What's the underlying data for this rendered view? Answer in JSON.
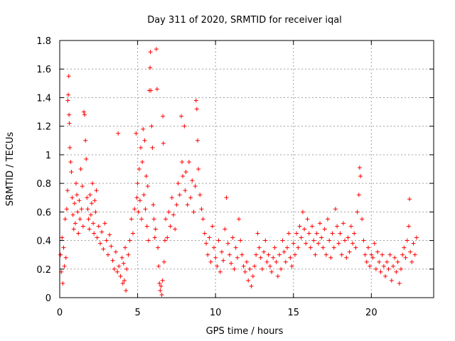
{
  "chart_data": {
    "type": "scatter",
    "title": "Day 311 of 2020, SRMTID for receiver iqal",
    "xlabel": "GPS time / hours",
    "ylabel": "SRMTID / TECUs",
    "xlim": [
      0,
      24
    ],
    "ylim": [
      0,
      1.8
    ],
    "x_ticks": [
      0,
      5,
      10,
      15,
      20
    ],
    "x_tick_labels": [
      "0",
      "5",
      "10",
      "15",
      "20"
    ],
    "y_ticks": [
      0,
      0.2,
      0.4,
      0.6,
      0.8,
      1.0,
      1.2,
      1.4,
      1.6,
      1.8
    ],
    "y_tick_labels": [
      "0",
      "0.2",
      "0.4",
      "0.6",
      "0.8",
      "1",
      "1.2",
      "1.4",
      "1.6",
      "1.8"
    ],
    "grid": true,
    "marker": "plus",
    "series": [
      {
        "name": "SRMTID",
        "color": "#ff0000",
        "points": [
          [
            0.05,
            0.3
          ],
          [
            0.1,
            0.18
          ],
          [
            0.15,
            0.42
          ],
          [
            0.2,
            0.1
          ],
          [
            0.25,
            0.35
          ],
          [
            0.3,
            0.22
          ],
          [
            0.35,
            0.55
          ],
          [
            0.4,
            0.28
          ],
          [
            0.45,
            0.62
          ],
          [
            0.5,
            0.75
          ],
          [
            0.52,
            1.38
          ],
          [
            0.55,
            1.42
          ],
          [
            0.58,
            1.55
          ],
          [
            0.6,
            1.28
          ],
          [
            0.62,
            1.22
          ],
          [
            0.65,
            1.05
          ],
          [
            0.7,
            0.95
          ],
          [
            0.75,
            0.88
          ],
          [
            0.8,
            0.7
          ],
          [
            0.85,
            0.58
          ],
          [
            0.9,
            0.48
          ],
          [
            0.95,
            0.66
          ],
          [
            1.0,
            0.52
          ],
          [
            1.05,
            0.8
          ],
          [
            1.1,
            0.72
          ],
          [
            1.15,
            0.6
          ],
          [
            1.2,
            0.45
          ],
          [
            1.25,
            0.68
          ],
          [
            1.3,
            0.55
          ],
          [
            1.35,
            0.9
          ],
          [
            1.4,
            0.62
          ],
          [
            1.45,
            0.78
          ],
          [
            1.5,
            0.5
          ],
          [
            1.55,
            1.3
          ],
          [
            1.6,
            1.28
          ],
          [
            1.65,
            1.1
          ],
          [
            1.7,
            0.97
          ],
          [
            1.75,
            0.7
          ],
          [
            1.8,
            0.62
          ],
          [
            1.85,
            0.55
          ],
          [
            1.9,
            0.48
          ],
          [
            1.95,
            0.72
          ],
          [
            2.0,
            0.58
          ],
          [
            2.05,
            0.66
          ],
          [
            2.1,
            0.8
          ],
          [
            2.15,
            0.52
          ],
          [
            2.2,
            0.45
          ],
          [
            2.25,
            0.68
          ],
          [
            2.3,
            0.6
          ],
          [
            2.35,
            0.75
          ],
          [
            2.4,
            0.42
          ],
          [
            2.5,
            0.5
          ],
          [
            2.6,
            0.38
          ],
          [
            2.7,
            0.46
          ],
          [
            2.8,
            0.34
          ],
          [
            2.9,
            0.52
          ],
          [
            3.0,
            0.4
          ],
          [
            3.1,
            0.3
          ],
          [
            3.2,
            0.44
          ],
          [
            3.3,
            0.36
          ],
          [
            3.4,
            0.26
          ],
          [
            3.5,
            0.2
          ],
          [
            3.6,
            0.32
          ],
          [
            3.7,
            0.18
          ],
          [
            3.75,
            1.15
          ],
          [
            3.8,
            0.22
          ],
          [
            3.9,
            0.15
          ],
          [
            4.0,
            0.28
          ],
          [
            4.05,
            0.1
          ],
          [
            4.1,
            0.24
          ],
          [
            4.15,
            0.12
          ],
          [
            4.2,
            0.35
          ],
          [
            4.25,
            0.05
          ],
          [
            4.3,
            0.2
          ],
          [
            4.4,
            0.3
          ],
          [
            4.5,
            0.4
          ],
          [
            4.6,
            0.55
          ],
          [
            4.7,
            0.45
          ],
          [
            4.8,
            0.62
          ],
          [
            4.9,
            1.15
          ],
          [
            4.95,
            0.7
          ],
          [
            5.0,
            0.8
          ],
          [
            5.05,
            0.6
          ],
          [
            5.1,
            0.9
          ],
          [
            5.15,
            0.68
          ],
          [
            5.2,
            1.05
          ],
          [
            5.25,
            0.55
          ],
          [
            5.3,
            0.95
          ],
          [
            5.35,
            1.18
          ],
          [
            5.4,
            0.72
          ],
          [
            5.45,
            1.1
          ],
          [
            5.5,
            0.62
          ],
          [
            5.55,
            0.85
          ],
          [
            5.6,
            0.5
          ],
          [
            5.65,
            0.78
          ],
          [
            5.7,
            0.4
          ],
          [
            5.75,
            1.45
          ],
          [
            5.8,
            1.61
          ],
          [
            5.82,
            1.72
          ],
          [
            5.85,
            1.45
          ],
          [
            5.9,
            1.2
          ],
          [
            5.95,
            1.05
          ],
          [
            6.0,
            0.65
          ],
          [
            6.05,
            0.55
          ],
          [
            6.1,
            0.42
          ],
          [
            6.15,
            0.48
          ],
          [
            6.2,
            1.74
          ],
          [
            6.25,
            1.46
          ],
          [
            6.3,
            0.35
          ],
          [
            6.35,
            0.22
          ],
          [
            6.4,
            0.1
          ],
          [
            6.45,
            0.05
          ],
          [
            6.5,
            0.08
          ],
          [
            6.55,
            0.02
          ],
          [
            6.6,
            0.12
          ],
          [
            6.62,
            1.27
          ],
          [
            6.65,
            1.08
          ],
          [
            6.7,
            0.25
          ],
          [
            6.75,
            0.4
          ],
          [
            6.8,
            0.55
          ],
          [
            6.9,
            0.42
          ],
          [
            7.0,
            0.6
          ],
          [
            7.1,
            0.5
          ],
          [
            7.2,
            0.7
          ],
          [
            7.3,
            0.58
          ],
          [
            7.4,
            0.48
          ],
          [
            7.5,
            0.65
          ],
          [
            7.6,
            0.8
          ],
          [
            7.7,
            0.72
          ],
          [
            7.8,
            1.27
          ],
          [
            7.85,
            0.95
          ],
          [
            7.9,
            0.85
          ],
          [
            8.0,
            1.2
          ],
          [
            8.05,
            0.75
          ],
          [
            8.1,
            0.88
          ],
          [
            8.2,
            0.65
          ],
          [
            8.3,
            0.95
          ],
          [
            8.4,
            0.7
          ],
          [
            8.5,
            0.82
          ],
          [
            8.6,
            0.6
          ],
          [
            8.7,
            0.78
          ],
          [
            8.75,
            1.38
          ],
          [
            8.8,
            1.32
          ],
          [
            8.85,
            1.1
          ],
          [
            8.9,
            0.9
          ],
          [
            9.0,
            0.72
          ],
          [
            9.1,
            0.62
          ],
          [
            9.2,
            0.55
          ],
          [
            9.3,
            0.45
          ],
          [
            9.4,
            0.38
          ],
          [
            9.5,
            0.3
          ],
          [
            9.6,
            0.42
          ],
          [
            9.7,
            0.25
          ],
          [
            9.8,
            0.5
          ],
          [
            9.9,
            0.35
          ],
          [
            10.0,
            0.28
          ],
          [
            10.1,
            0.22
          ],
          [
            10.2,
            0.4
          ],
          [
            10.3,
            0.18
          ],
          [
            10.4,
            0.32
          ],
          [
            10.5,
            0.26
          ],
          [
            10.6,
            0.48
          ],
          [
            10.7,
            0.7
          ],
          [
            10.8,
            0.38
          ],
          [
            10.9,
            0.3
          ],
          [
            11.0,
            0.24
          ],
          [
            11.1,
            0.42
          ],
          [
            11.2,
            0.2
          ],
          [
            11.3,
            0.35
          ],
          [
            11.4,
            0.28
          ],
          [
            11.5,
            0.55
          ],
          [
            11.6,
            0.4
          ],
          [
            11.7,
            0.3
          ],
          [
            11.8,
            0.22
          ],
          [
            11.9,
            0.18
          ],
          [
            12.0,
            0.25
          ],
          [
            12.1,
            0.12
          ],
          [
            12.2,
            0.2
          ],
          [
            12.3,
            0.08
          ],
          [
            12.4,
            0.15
          ],
          [
            12.5,
            0.22
          ],
          [
            12.6,
            0.3
          ],
          [
            12.7,
            0.45
          ],
          [
            12.8,
            0.35
          ],
          [
            12.9,
            0.28
          ],
          [
            13.0,
            0.2
          ],
          [
            13.1,
            0.32
          ],
          [
            13.2,
            0.4
          ],
          [
            13.3,
            0.25
          ],
          [
            13.4,
            0.3
          ],
          [
            13.5,
            0.22
          ],
          [
            13.6,
            0.18
          ],
          [
            13.7,
            0.28
          ],
          [
            13.8,
            0.35
          ],
          [
            13.9,
            0.25
          ],
          [
            14.0,
            0.15
          ],
          [
            14.1,
            0.3
          ],
          [
            14.2,
            0.2
          ],
          [
            14.3,
            0.4
          ],
          [
            14.4,
            0.32
          ],
          [
            14.5,
            0.25
          ],
          [
            14.6,
            0.35
          ],
          [
            14.7,
            0.45
          ],
          [
            14.8,
            0.28
          ],
          [
            14.9,
            0.22
          ],
          [
            15.0,
            0.38
          ],
          [
            15.1,
            0.3
          ],
          [
            15.2,
            0.45
          ],
          [
            15.3,
            0.35
          ],
          [
            15.4,
            0.5
          ],
          [
            15.5,
            0.42
          ],
          [
            15.6,
            0.6
          ],
          [
            15.7,
            0.48
          ],
          [
            15.8,
            0.38
          ],
          [
            15.9,
            0.55
          ],
          [
            16.0,
            0.45
          ],
          [
            16.1,
            0.35
          ],
          [
            16.2,
            0.5
          ],
          [
            16.3,
            0.4
          ],
          [
            16.4,
            0.3
          ],
          [
            16.5,
            0.45
          ],
          [
            16.6,
            0.38
          ],
          [
            16.7,
            0.52
          ],
          [
            16.8,
            0.42
          ],
          [
            16.9,
            0.35
          ],
          [
            17.0,
            0.48
          ],
          [
            17.1,
            0.3
          ],
          [
            17.2,
            0.55
          ],
          [
            17.3,
            0.4
          ],
          [
            17.4,
            0.28
          ],
          [
            17.5,
            0.45
          ],
          [
            17.6,
            0.35
          ],
          [
            17.7,
            0.62
          ],
          [
            17.8,
            0.5
          ],
          [
            17.9,
            0.38
          ],
          [
            18.0,
            0.45
          ],
          [
            18.1,
            0.3
          ],
          [
            18.2,
            0.52
          ],
          [
            18.3,
            0.4
          ],
          [
            18.4,
            0.28
          ],
          [
            18.5,
            0.42
          ],
          [
            18.6,
            0.32
          ],
          [
            18.7,
            0.5
          ],
          [
            18.8,
            0.38
          ],
          [
            18.9,
            0.45
          ],
          [
            19.0,
            0.35
          ],
          [
            19.1,
            0.6
          ],
          [
            19.2,
            0.72
          ],
          [
            19.25,
            0.91
          ],
          [
            19.3,
            0.85
          ],
          [
            19.4,
            0.55
          ],
          [
            19.5,
            0.4
          ],
          [
            19.6,
            0.3
          ],
          [
            19.7,
            0.25
          ],
          [
            19.8,
            0.35
          ],
          [
            19.9,
            0.22
          ],
          [
            20.0,
            0.3
          ],
          [
            20.1,
            0.28
          ],
          [
            20.2,
            0.38
          ],
          [
            20.3,
            0.2
          ],
          [
            20.4,
            0.32
          ],
          [
            20.5,
            0.25
          ],
          [
            20.6,
            0.18
          ],
          [
            20.7,
            0.3
          ],
          [
            20.8,
            0.22
          ],
          [
            20.9,
            0.15
          ],
          [
            21.0,
            0.25
          ],
          [
            21.1,
            0.2
          ],
          [
            21.2,
            0.3
          ],
          [
            21.3,
            0.12
          ],
          [
            21.4,
            0.22
          ],
          [
            21.5,
            0.28
          ],
          [
            21.6,
            0.18
          ],
          [
            21.7,
            0.25
          ],
          [
            21.8,
            0.1
          ],
          [
            21.9,
            0.2
          ],
          [
            22.0,
            0.3
          ],
          [
            22.1,
            0.35
          ],
          [
            22.2,
            0.28
          ],
          [
            22.3,
            0.4
          ],
          [
            22.4,
            0.5
          ],
          [
            22.45,
            0.69
          ],
          [
            22.5,
            0.32
          ],
          [
            22.6,
            0.25
          ],
          [
            22.7,
            0.38
          ],
          [
            22.8,
            0.3
          ],
          [
            22.9,
            0.42
          ]
        ]
      }
    ]
  }
}
